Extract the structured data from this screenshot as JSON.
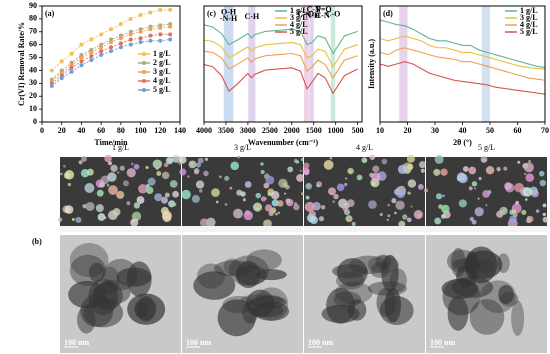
{
  "chart_data": [
    {
      "type": "line",
      "label": "(a)",
      "xlabel": "Time/min",
      "ylabel": "Cr(VI) Removal Rate/%",
      "x": [
        10,
        20,
        30,
        40,
        50,
        60,
        70,
        80,
        90,
        100,
        110,
        120,
        130
      ],
      "xlim": [
        0,
        140
      ],
      "xticks": [
        0,
        20,
        40,
        60,
        80,
        100,
        120,
        140
      ],
      "ylim": [
        0,
        90
      ],
      "yticks": [
        0,
        10,
        20,
        30,
        40,
        50,
        60,
        70,
        80,
        90
      ],
      "markers": true,
      "legend": "center right",
      "series": [
        {
          "name": "1 g/L",
          "color": "#f2c14e",
          "values": [
            40,
            47,
            53,
            60,
            64,
            68,
            72,
            76,
            80,
            83,
            85,
            87,
            87
          ]
        },
        {
          "name": "2 g/L",
          "color": "#a3ad8c",
          "values": [
            33,
            40,
            46,
            52,
            56,
            60,
            64,
            67,
            70,
            72,
            74,
            75,
            76
          ]
        },
        {
          "name": "3 g/L",
          "color": "#f0a050",
          "values": [
            32,
            38,
            44,
            50,
            54,
            58,
            62,
            65,
            68,
            70,
            72,
            73,
            74
          ]
        },
        {
          "name": "4 g/L",
          "color": "#e0705f",
          "values": [
            30,
            36,
            42,
            47,
            51,
            55,
            58,
            61,
            64,
            65,
            67,
            68,
            68
          ]
        },
        {
          "name": "5 g/L",
          "color": "#6aa0e0",
          "values": [
            28,
            34,
            39,
            44,
            48,
            52,
            55,
            58,
            60,
            62,
            63,
            63,
            64
          ]
        }
      ]
    },
    {
      "type": "line",
      "label": "(c)",
      "xlabel": "Wavenumber (cm⁻¹)",
      "x": [
        4000,
        3800,
        3600,
        3430,
        3250,
        3000,
        2920,
        2850,
        2600,
        2300,
        2000,
        1800,
        1650,
        1540,
        1400,
        1240,
        1060,
        800,
        500
      ],
      "xlim": [
        4000,
        400
      ],
      "xticks": [
        4000,
        3500,
        3000,
        2500,
        2000,
        1500,
        1000,
        500
      ],
      "ylim": [
        0,
        105
      ],
      "markers": false,
      "legend": "upper center",
      "bands": [
        {
          "from": 3550,
          "to": 3330,
          "color": "#a9c4ea"
        },
        {
          "from": 2990,
          "to": 2830,
          "color": "#c9b6e4"
        },
        {
          "from": 1720,
          "to": 1610,
          "color": "#e6b3d3"
        },
        {
          "from": 1600,
          "to": 1500,
          "color": "#c9b6e4"
        },
        {
          "from": 1110,
          "to": 1010,
          "color": "#a8dcc0"
        }
      ],
      "annotations": [
        {
          "text": "O-H",
          "x": 3440,
          "y": 99
        },
        {
          "text": "-N-H",
          "x": 3440,
          "y": 93
        },
        {
          "text": "C-H",
          "x": 2910,
          "y": 95
        },
        {
          "text": "C=O",
          "x": 1680,
          "y": 97
        },
        {
          "text": "C-N",
          "x": 1500,
          "y": 101
        },
        {
          "text": "N-H",
          "x": 1520,
          "y": 96
        },
        {
          "text": "P=O",
          "x": 1270,
          "y": 101
        },
        {
          "text": "C-N",
          "x": 1300,
          "y": 96
        },
        {
          "text": "C-O",
          "x": 1060,
          "y": 97
        }
      ],
      "series": [
        {
          "name": "1 g/L",
          "color": "#5cb88a",
          "values": [
            88,
            86,
            80,
            70,
            74,
            80,
            76,
            79,
            82,
            83,
            84,
            82,
            70,
            72,
            78,
            76,
            62,
            78,
            82
          ]
        },
        {
          "name": "3 g/L",
          "color": "#e8c040",
          "values": [
            74,
            73,
            68,
            58,
            62,
            68,
            64,
            67,
            70,
            71,
            72,
            70,
            58,
            60,
            66,
            64,
            50,
            66,
            70
          ]
        },
        {
          "name": "4 g/L",
          "color": "#f0a050",
          "values": [
            64,
            63,
            58,
            48,
            52,
            58,
            54,
            57,
            60,
            61,
            62,
            60,
            46,
            50,
            56,
            52,
            40,
            56,
            60
          ]
        },
        {
          "name": "5 g/L",
          "color": "#d9534f",
          "values": [
            52,
            50,
            42,
            28,
            34,
            44,
            40,
            43,
            47,
            48,
            49,
            46,
            30,
            36,
            44,
            40,
            26,
            42,
            48
          ]
        }
      ]
    },
    {
      "type": "line",
      "label": "(d)",
      "xlabel": "2θ (°)",
      "ylabel": "Intensity (a.u.)",
      "x": [
        10,
        13,
        16,
        19,
        22,
        25,
        28,
        31,
        34,
        37,
        40,
        43,
        46,
        49,
        52,
        55,
        58,
        61,
        64,
        67,
        70
      ],
      "xlim": [
        10,
        70
      ],
      "xticks": [
        10,
        20,
        30,
        40,
        50,
        60,
        70
      ],
      "ylim": [
        0,
        100
      ],
      "markers": false,
      "legend": "upper right",
      "bands": [
        {
          "from": 17,
          "to": 20,
          "color": "#d8b6e0"
        },
        {
          "from": 47,
          "to": 50,
          "color": "#b6cdea"
        }
      ],
      "series": [
        {
          "name": "1 g/L",
          "color": "#5cb88a",
          "values": [
            88,
            86,
            84,
            83,
            80,
            76,
            72,
            70,
            70,
            68,
            66,
            66,
            62,
            60,
            58,
            56,
            54,
            52,
            50,
            48,
            47
          ]
        },
        {
          "name": "3 g/L",
          "color": "#e8c040",
          "values": [
            72,
            70,
            72,
            74,
            72,
            70,
            66,
            64,
            64,
            62,
            60,
            60,
            58,
            56,
            54,
            52,
            50,
            48,
            47,
            46,
            46
          ]
        },
        {
          "name": "4 g/L",
          "color": "#f0a050",
          "values": [
            60,
            58,
            62,
            64,
            62,
            60,
            58,
            56,
            55,
            54,
            52,
            52,
            50,
            48,
            46,
            44,
            42,
            40,
            38,
            37,
            36
          ]
        },
        {
          "name": "5 g/L",
          "color": "#d9534f",
          "values": [
            50,
            48,
            50,
            52,
            50,
            46,
            42,
            40,
            38,
            36,
            35,
            34,
            33,
            32,
            30,
            29,
            28,
            27,
            26,
            25,
            24
          ]
        }
      ]
    }
  ],
  "micrographs": {
    "label": "(b)",
    "columns": [
      "1 g/L",
      "3 g/L",
      "4 g/L",
      "5 g/L"
    ],
    "scale_bar": "100 nm"
  }
}
